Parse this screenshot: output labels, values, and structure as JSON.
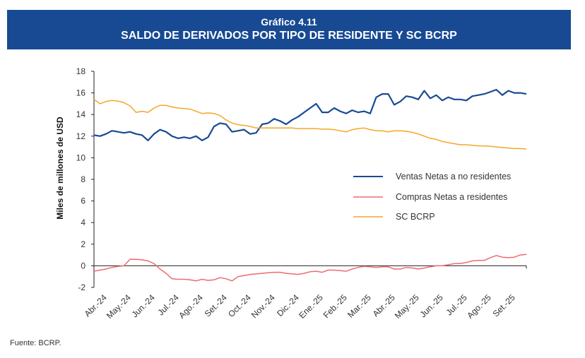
{
  "header": {
    "number": "Gráfico 4.11",
    "title": "SALDO DE DERIVADOS POR TIPO DE RESIDENTE Y SC BCRP"
  },
  "source": "Fuente: BCRP.",
  "chart_data": {
    "type": "line",
    "title": "SALDO DE DERIVADOS POR TIPO DE RESIDENTE Y SC BCRP",
    "xlabel": "",
    "ylabel": "Miles de millones de USD",
    "ylim": [
      -2,
      18
    ],
    "yticks": [
      -2,
      0,
      2,
      4,
      6,
      8,
      10,
      12,
      14,
      16,
      18
    ],
    "grid": false,
    "legend_position": "right-center",
    "x_tick_labels": [
      "Abr.-24",
      "May.-24",
      "Jun.-24",
      "Jul.-24",
      "Ago.-24",
      "Set.-24",
      "Oct.-24",
      "Nov.-24",
      "Dic.-24",
      "Ene.-25",
      "Feb.-25",
      "Mar.-25",
      "Abr.-25",
      "May.-25",
      "Jun.-25",
      "Jul.-25",
      "Ago.-25",
      "Set.-25"
    ],
    "x_range_months": [
      0,
      18
    ],
    "series": [
      {
        "name": "Ventas Netas a no residentes",
        "color": "#184A93",
        "x": [
          0,
          0.25,
          0.5,
          0.75,
          1,
          1.25,
          1.5,
          1.75,
          2,
          2.25,
          2.5,
          2.75,
          3,
          3.25,
          3.5,
          3.75,
          4,
          4.25,
          4.5,
          4.75,
          5,
          5.25,
          5.5,
          5.75,
          6,
          6.25,
          6.5,
          6.75,
          7,
          7.25,
          7.5,
          7.75,
          8,
          8.25,
          8.5,
          8.75,
          9,
          9.25,
          9.5,
          9.75,
          10,
          10.25,
          10.5,
          10.75,
          11,
          11.25,
          11.5,
          11.75,
          12,
          12.25,
          12.5,
          12.75,
          13,
          13.25,
          13.5,
          13.75,
          14,
          14.25,
          14.5,
          14.75,
          15,
          15.25,
          15.5,
          15.75,
          16,
          16.25,
          16.5,
          16.75,
          17,
          17.25,
          17.5,
          17.75,
          18
        ],
        "values": [
          12.1,
          12.0,
          12.2,
          12.5,
          12.4,
          12.3,
          12.4,
          12.2,
          12.1,
          11.6,
          12.2,
          12.6,
          12.4,
          12.0,
          11.8,
          11.9,
          11.8,
          12.0,
          11.6,
          11.9,
          12.9,
          13.2,
          13.1,
          12.4,
          12.5,
          12.6,
          12.2,
          12.3,
          13.1,
          13.2,
          13.6,
          13.4,
          13.1,
          13.5,
          13.8,
          14.2,
          14.6,
          15.0,
          14.2,
          14.2,
          14.6,
          14.3,
          14.1,
          14.4,
          14.2,
          14.3,
          14.1,
          15.6,
          15.9,
          15.9,
          14.9,
          15.2,
          15.7,
          15.6,
          15.4,
          16.2,
          15.5,
          15.8,
          15.3,
          15.6,
          15.4,
          15.4,
          15.3,
          15.7,
          15.8,
          15.9,
          16.1,
          16.3,
          15.8,
          16.2,
          16.0,
          16.0,
          15.9
        ]
      },
      {
        "name": "Compras Netas a residentes",
        "color": "#EE6B6E",
        "x": [
          0,
          0.25,
          0.5,
          0.75,
          1,
          1.25,
          1.5,
          1.75,
          2,
          2.25,
          2.5,
          2.75,
          3,
          3.25,
          3.5,
          3.75,
          4,
          4.25,
          4.5,
          4.75,
          5,
          5.25,
          5.5,
          5.75,
          6,
          6.25,
          6.5,
          6.75,
          7,
          7.25,
          7.5,
          7.75,
          8,
          8.25,
          8.5,
          8.75,
          9,
          9.25,
          9.5,
          9.75,
          10,
          10.25,
          10.5,
          10.75,
          11,
          11.25,
          11.5,
          11.75,
          12,
          12.25,
          12.5,
          12.75,
          13,
          13.25,
          13.5,
          13.75,
          14,
          14.25,
          14.5,
          14.75,
          15,
          15.25,
          15.5,
          15.75,
          16,
          16.25,
          16.5,
          16.75,
          17,
          17.25,
          17.5,
          17.75,
          18
        ],
        "values": [
          -0.5,
          -0.4,
          -0.3,
          -0.15,
          -0.05,
          0.0,
          0.6,
          0.6,
          0.55,
          0.45,
          0.2,
          -0.3,
          -0.7,
          -1.2,
          -1.25,
          -1.25,
          -1.3,
          -1.4,
          -1.25,
          -1.35,
          -1.3,
          -1.1,
          -1.2,
          -1.4,
          -1.0,
          -0.9,
          -0.8,
          -0.75,
          -0.7,
          -0.65,
          -0.6,
          -0.6,
          -0.7,
          -0.75,
          -0.8,
          -0.7,
          -0.55,
          -0.5,
          -0.6,
          -0.4,
          -0.4,
          -0.45,
          -0.5,
          -0.3,
          -0.15,
          -0.05,
          -0.1,
          -0.15,
          -0.1,
          -0.1,
          -0.3,
          -0.3,
          -0.15,
          -0.2,
          -0.3,
          -0.2,
          -0.1,
          0.0,
          0.0,
          0.1,
          0.2,
          0.2,
          0.3,
          0.45,
          0.5,
          0.5,
          0.75,
          0.95,
          0.8,
          0.75,
          0.8,
          1.0,
          1.05
        ]
      },
      {
        "name": "SC BCRP",
        "color": "#F5A623",
        "x": [
          0,
          0.25,
          0.5,
          0.75,
          1,
          1.25,
          1.5,
          1.75,
          2,
          2.25,
          2.5,
          2.75,
          3,
          3.25,
          3.5,
          3.75,
          4,
          4.25,
          4.5,
          4.75,
          5,
          5.25,
          5.5,
          5.75,
          6,
          6.25,
          6.5,
          6.75,
          7,
          7.25,
          7.5,
          7.75,
          8,
          8.25,
          8.5,
          8.75,
          9,
          9.25,
          9.5,
          9.75,
          10,
          10.25,
          10.5,
          10.75,
          11,
          11.25,
          11.5,
          11.75,
          12,
          12.25,
          12.5,
          12.75,
          13,
          13.25,
          13.5,
          13.75,
          14,
          14.25,
          14.5,
          14.75,
          15,
          15.25,
          15.5,
          15.75,
          16,
          16.25,
          16.5,
          16.75,
          17,
          17.25,
          17.5,
          17.75,
          18
        ],
        "values": [
          15.4,
          15.0,
          15.2,
          15.3,
          15.25,
          15.1,
          14.8,
          14.2,
          14.3,
          14.2,
          14.6,
          14.85,
          14.85,
          14.7,
          14.6,
          14.55,
          14.5,
          14.3,
          14.1,
          14.15,
          14.1,
          13.9,
          13.5,
          13.2,
          13.05,
          13.0,
          12.9,
          12.75,
          12.75,
          12.75,
          12.75,
          12.75,
          12.75,
          12.75,
          12.7,
          12.7,
          12.7,
          12.7,
          12.65,
          12.65,
          12.6,
          12.5,
          12.4,
          12.6,
          12.7,
          12.75,
          12.6,
          12.5,
          12.5,
          12.4,
          12.5,
          12.5,
          12.45,
          12.35,
          12.2,
          12.0,
          11.8,
          11.7,
          11.5,
          11.4,
          11.3,
          11.2,
          11.2,
          11.15,
          11.1,
          11.1,
          11.05,
          11.0,
          10.95,
          10.9,
          10.85,
          10.85,
          10.8
        ]
      }
    ]
  }
}
